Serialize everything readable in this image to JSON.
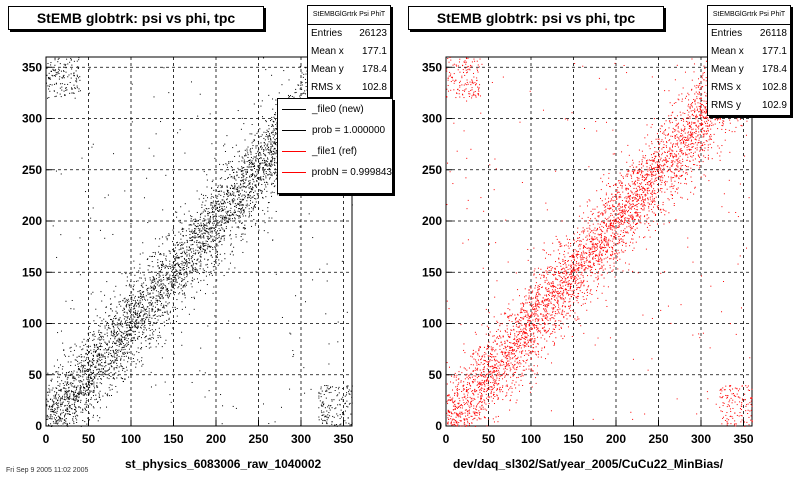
{
  "footer_text": "Fri Sep 9 2005 11:02 2005",
  "chart_data": [
    {
      "type": "scatter",
      "title": "StEMB globtrk: psi vs phi, tpc",
      "xlabel": "st_physics_6083006_raw_1040002",
      "ylabel": "",
      "xlim": [
        0,
        360
      ],
      "ylim": [
        0,
        360
      ],
      "xticks": [
        0,
        50,
        100,
        150,
        200,
        250,
        300,
        350
      ],
      "yticks": [
        0,
        50,
        100,
        150,
        200,
        250,
        300,
        350
      ],
      "grid": true,
      "color": "#000000",
      "trend": {
        "x": [
          0,
          50,
          100,
          150,
          200,
          250,
          300,
          360
        ],
        "y": [
          0,
          50,
          100,
          150,
          200,
          250,
          300,
          360
        ],
        "spread": 22
      },
      "stats": {
        "header": "StEMBGlGrtrk Psi PhiT",
        "rows": [
          {
            "label": "Entries",
            "value": "26123"
          },
          {
            "label": "Mean x",
            "value": "177.1"
          },
          {
            "label": "Mean y",
            "value": "178.4"
          },
          {
            "label": "RMS x",
            "value": "102.8"
          }
        ]
      },
      "legend": {
        "position": "top-right",
        "entries": [
          {
            "label": "_file0 (new)",
            "color": "#000000"
          },
          {
            "label": "prob = 1.000000",
            "color": "#000000"
          },
          {
            "label": "_file1 (ref)",
            "color": "#ff0000"
          },
          {
            "label": "probN = 0.999843",
            "color": "#ff0000"
          }
        ]
      }
    },
    {
      "type": "scatter",
      "title": "StEMB globtrk: psi vs phi, tpc",
      "xlabel": "dev/daq_sl302/Sat/year_2005/CuCu22_MinBias/",
      "ylabel": "",
      "xlim": [
        0,
        360
      ],
      "ylim": [
        0,
        360
      ],
      "xticks": [
        0,
        50,
        100,
        150,
        200,
        250,
        300,
        350
      ],
      "yticks": [
        0,
        50,
        100,
        150,
        200,
        250,
        300,
        350
      ],
      "grid": true,
      "color": "#ff0000",
      "trend": {
        "x": [
          0,
          50,
          100,
          150,
          200,
          250,
          300,
          360
        ],
        "y": [
          0,
          50,
          100,
          150,
          200,
          250,
          300,
          360
        ],
        "spread": 22
      },
      "stats": {
        "header": "StEMBGlGrtrk Psi PhiT",
        "rows": [
          {
            "label": "Entries",
            "value": "26118"
          },
          {
            "label": "Mean x",
            "value": "177.1"
          },
          {
            "label": "Mean y",
            "value": "178.4"
          },
          {
            "label": "RMS x",
            "value": "102.8"
          },
          {
            "label": "RMS y",
            "value": "102.9"
          }
        ]
      }
    }
  ]
}
